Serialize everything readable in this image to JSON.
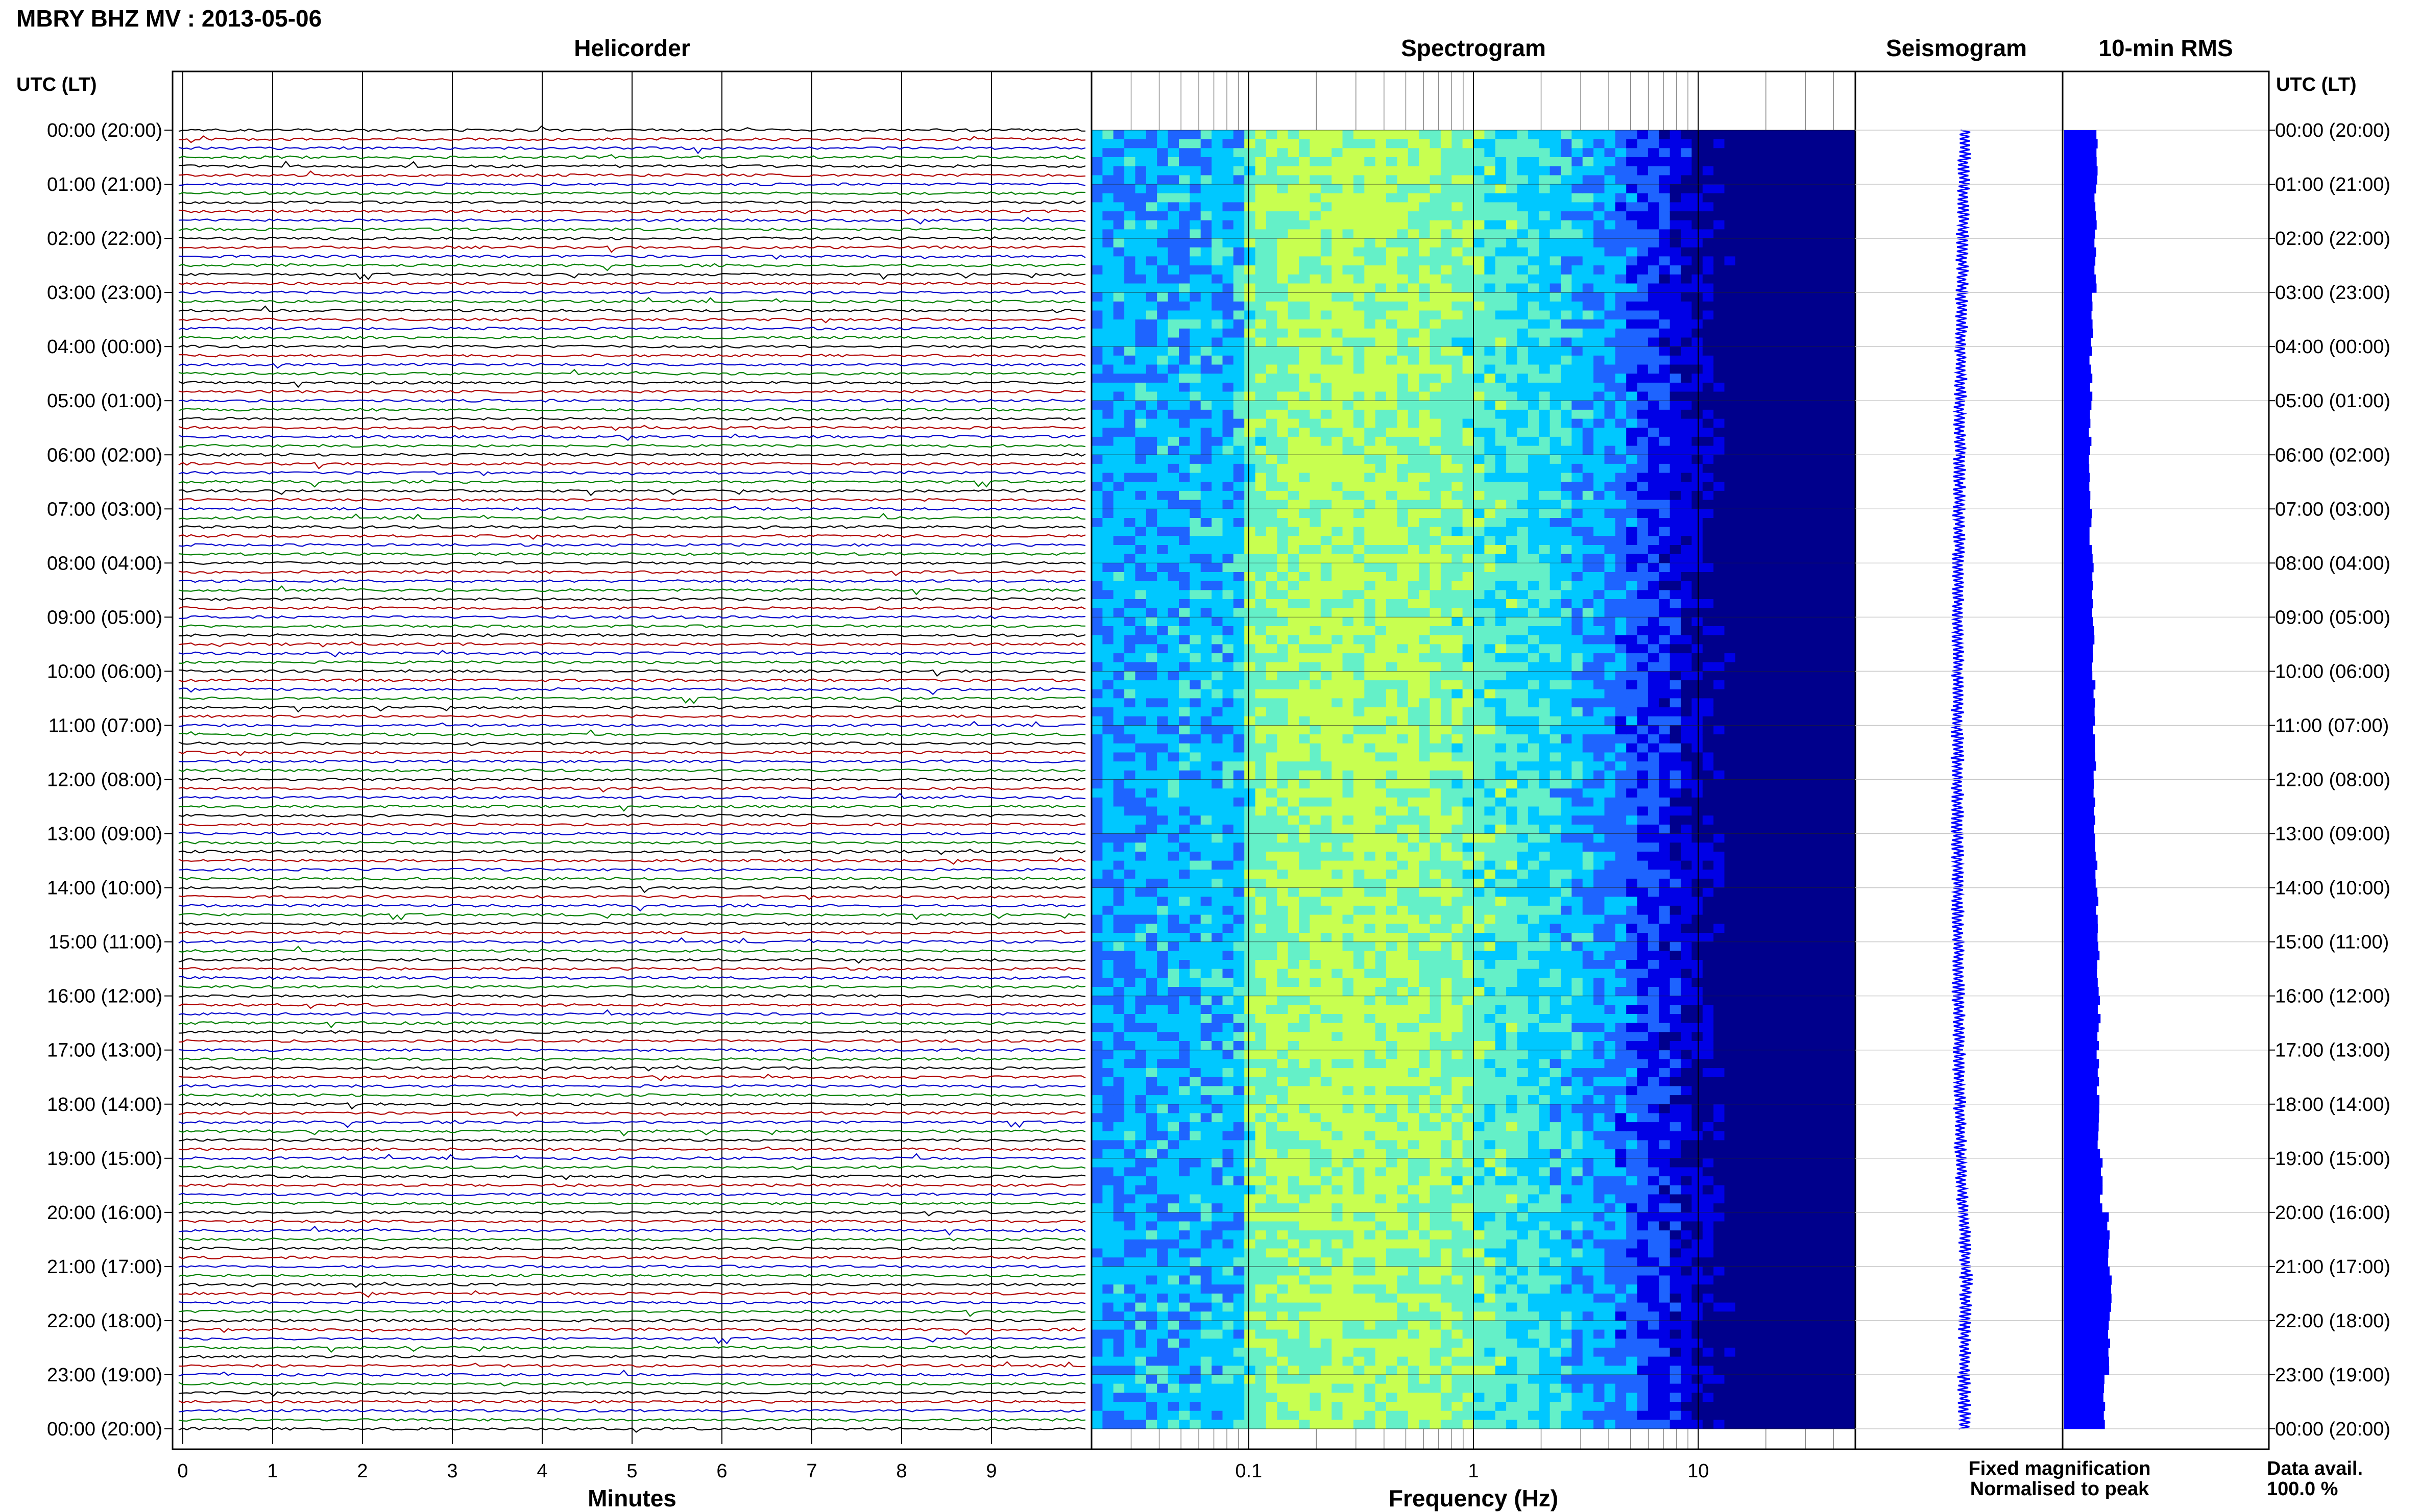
{
  "page": {
    "title": "MBRY BHZ MV : 2013-05-06",
    "time_axis_label": "UTC (LT)",
    "data_avail_label": "Data avail.",
    "data_avail_value": "100.0 %",
    "legend": {
      "fixed": "Fixed magnification",
      "fixed_color": "#0000ff",
      "normalised": "Normalised to peak",
      "normalised_color": "#ff0000"
    }
  },
  "time_ticks": [
    "00:00 (20:00)",
    "01:00 (21:00)",
    "02:00 (22:00)",
    "03:00 (23:00)",
    "04:00 (00:00)",
    "05:00 (01:00)",
    "06:00 (02:00)",
    "07:00 (03:00)",
    "08:00 (04:00)",
    "09:00 (05:00)",
    "10:00 (06:00)",
    "11:00 (07:00)",
    "12:00 (08:00)",
    "13:00 (09:00)",
    "14:00 (10:00)",
    "15:00 (11:00)",
    "16:00 (12:00)",
    "17:00 (13:00)",
    "18:00 (14:00)",
    "19:00 (15:00)",
    "20:00 (16:00)",
    "21:00 (17:00)",
    "22:00 (18:00)",
    "23:00 (19:00)",
    "00:00 (20:00)"
  ],
  "chart_data": [
    {
      "type": "line",
      "title": "Helicorder",
      "xlabel": "Minutes",
      "x_ticks": [
        "0",
        "1",
        "2",
        "3",
        "4",
        "5",
        "6",
        "7",
        "8",
        "9"
      ],
      "xlim": [
        0,
        10
      ],
      "rows_per_hour": 6,
      "total_rows": 144,
      "trace_colors": [
        "#000000",
        "#b00000",
        "#0000cc",
        "#008000"
      ],
      "grid": true
    },
    {
      "type": "heatmap",
      "title": "Spectrogram",
      "xlabel": "Frequency (Hz)",
      "x_scale": "log",
      "xlim": [
        0.02,
        50
      ],
      "x_ticks": [
        "0.1",
        "1",
        "10"
      ],
      "y_range_hours_utc": [
        0,
        24
      ],
      "colormap": [
        "#00008c",
        "#0000e6",
        "#1e64ff",
        "#00c8ff",
        "#64f0c8",
        "#c8ff50"
      ],
      "peak_energy_hz": 0.3
    },
    {
      "type": "line",
      "title": "Seismogram",
      "y_range_hours_utc": [
        0,
        24
      ],
      "series_color": "#0000ff"
    },
    {
      "type": "bar",
      "title": "10-min RMS",
      "bar_color": "#0000ff",
      "y_range_hours_utc": [
        0,
        24
      ],
      "rms_relative_hourly": [
        0.58,
        0.56,
        0.55,
        0.5,
        0.48,
        0.47,
        0.47,
        0.48,
        0.5,
        0.52,
        0.53,
        0.54,
        0.55,
        0.57,
        0.58,
        0.6,
        0.62,
        0.6,
        0.61,
        0.66,
        0.78,
        0.82,
        0.8,
        0.72
      ]
    }
  ]
}
